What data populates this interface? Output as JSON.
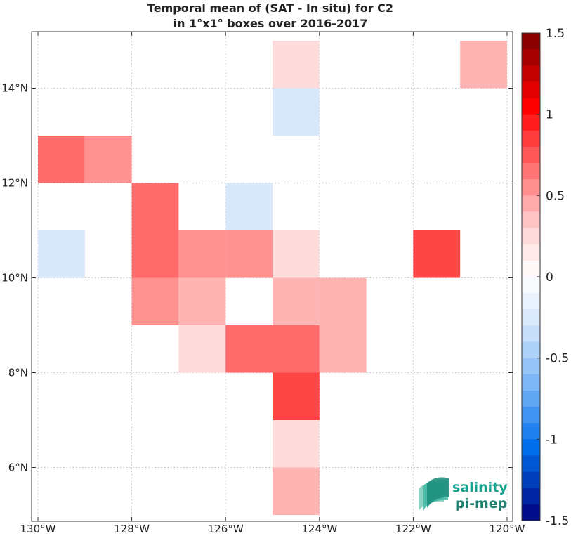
{
  "chart_data": {
    "type": "heatmap",
    "title": [
      "Temporal mean of (SAT - In situ) for C2",
      "in 1°x1° boxes over 2016-2017"
    ],
    "xlim": [
      -130,
      -120
    ],
    "ylim": [
      5,
      15
    ],
    "x_ticks": [
      -130,
      -128,
      -126,
      -124,
      -122,
      -120
    ],
    "x_tick_labels": [
      "130°W",
      "128°W",
      "126°W",
      "124°W",
      "122°W",
      "120°W"
    ],
    "y_ticks": [
      6,
      8,
      10,
      12,
      14
    ],
    "y_tick_labels": [
      "6°N",
      "8°N",
      "10°N",
      "12°N",
      "14°N"
    ],
    "grid": true,
    "grid_style": "dotted",
    "cell_size_deg": 1,
    "cells": [
      {
        "lon": -125,
        "lat": 14,
        "value": 0.1
      },
      {
        "lon": -121,
        "lat": 14,
        "value": 0.3
      },
      {
        "lon": -125,
        "lat": 13,
        "value": -0.1
      },
      {
        "lon": -130,
        "lat": 12,
        "value": 0.5
      },
      {
        "lon": -129,
        "lat": 12,
        "value": 0.4
      },
      {
        "lon": -128,
        "lat": 11,
        "value": 0.5
      },
      {
        "lon": -126,
        "lat": 11,
        "value": -0.1
      },
      {
        "lon": -130,
        "lat": 10,
        "value": -0.1
      },
      {
        "lon": -128,
        "lat": 10,
        "value": 0.5
      },
      {
        "lon": -127,
        "lat": 10,
        "value": 0.4
      },
      {
        "lon": -126,
        "lat": 10,
        "value": 0.4
      },
      {
        "lon": -125,
        "lat": 10,
        "value": 0.1
      },
      {
        "lon": -122,
        "lat": 10,
        "value": 0.6
      },
      {
        "lon": -128,
        "lat": 9,
        "value": 0.4
      },
      {
        "lon": -127,
        "lat": 9,
        "value": 0.3
      },
      {
        "lon": -125,
        "lat": 9,
        "value": 0.3
      },
      {
        "lon": -124,
        "lat": 9,
        "value": 0.3
      },
      {
        "lon": -127,
        "lat": 8,
        "value": 0.1
      },
      {
        "lon": -126,
        "lat": 8,
        "value": 0.5
      },
      {
        "lon": -125,
        "lat": 8,
        "value": 0.5
      },
      {
        "lon": -124,
        "lat": 8,
        "value": 0.3
      },
      {
        "lon": -125,
        "lat": 7,
        "value": 0.6
      },
      {
        "lon": -125,
        "lat": 6,
        "value": 0.1
      },
      {
        "lon": -125,
        "lat": 5,
        "value": 0.3
      }
    ],
    "colorbar": {
      "range": [
        -1.5,
        1.5
      ],
      "levels": 30,
      "ticks": [
        1.5,
        1,
        0.5,
        0,
        -0.5,
        -1,
        -1.5
      ],
      "tick_labels": [
        "1.5",
        "1",
        "0.5",
        "0",
        "-0.5",
        "-1",
        "-1.5"
      ],
      "colormap": "blue-white-red"
    }
  },
  "logo": {
    "line1": "salinity",
    "line2": "pi-mep"
  }
}
